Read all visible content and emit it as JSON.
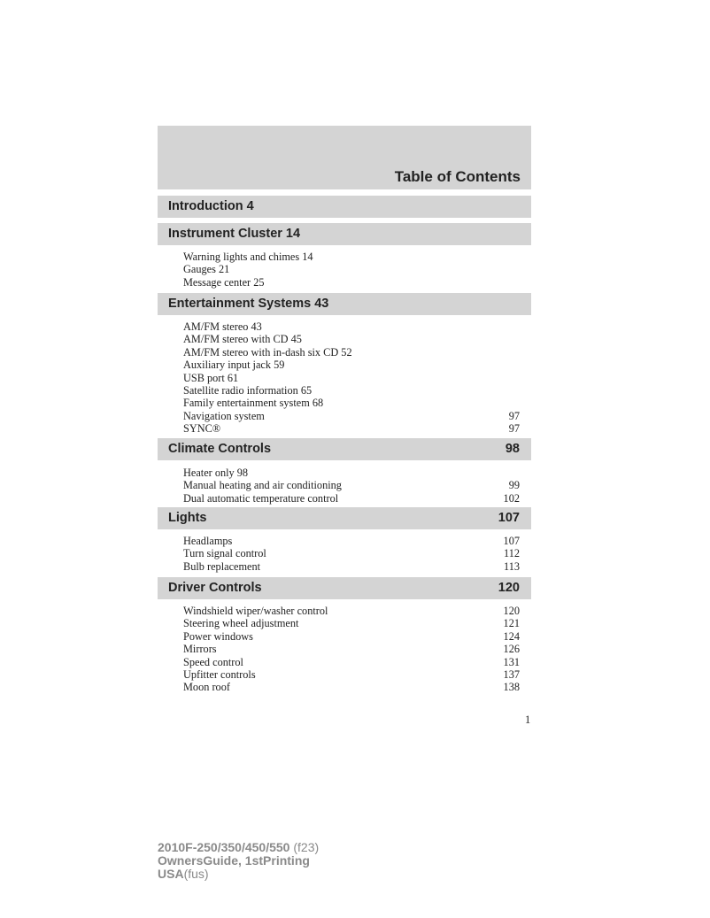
{
  "header": {
    "title": "Table of Contents"
  },
  "sections": [
    {
      "title": "Introduction 4",
      "page": "",
      "items": []
    },
    {
      "title": "Instrument Cluster 14",
      "page": "",
      "items": [
        {
          "label": "Warning lights and chimes 14",
          "page": ""
        },
        {
          "label": "Gauges 21",
          "page": ""
        },
        {
          "label": "Message center 25",
          "page": ""
        }
      ]
    },
    {
      "title": "Entertainment Systems 43",
      "page": "",
      "items": [
        {
          "label": "AM/FM stereo 43",
          "page": ""
        },
        {
          "label": "AM/FM stereo with CD 45",
          "page": ""
        },
        {
          "label": "AM/FM stereo with in-dash six CD 52",
          "page": ""
        },
        {
          "label": "Auxiliary input jack 59",
          "page": ""
        },
        {
          "label": "USB port 61",
          "page": ""
        },
        {
          "label": "Satellite radio information 65",
          "page": ""
        },
        {
          "label": "Family entertainment system 68",
          "page": ""
        },
        {
          "label": "Navigation system",
          "page": "97"
        },
        {
          "label": "SYNC®",
          "page": "97"
        }
      ]
    },
    {
      "title": "Climate Controls",
      "page": "98",
      "items": [
        {
          "label": "Heater only 98",
          "page": ""
        },
        {
          "label": "Manual heating and air conditioning",
          "page": "99"
        },
        {
          "label": "Dual automatic temperature control",
          "page": "102"
        }
      ]
    },
    {
      "title": "Lights",
      "page": "107",
      "items": [
        {
          "label": "Headlamps",
          "page": "107"
        },
        {
          "label": "Turn signal control",
          "page": "112"
        },
        {
          "label": "Bulb replacement",
          "page": "113"
        }
      ]
    },
    {
      "title": "Driver Controls",
      "page": "120",
      "items": [
        {
          "label": "Windshield wiper/washer control",
          "page": "120"
        },
        {
          "label": "Steering wheel adjustment",
          "page": "121"
        },
        {
          "label": "Power windows",
          "page": "124"
        },
        {
          "label": "Mirrors",
          "page": "126"
        },
        {
          "label": "Speed control",
          "page": "131"
        },
        {
          "label": "Upfitter controls",
          "page": "137"
        },
        {
          "label": "Moon roof",
          "page": "138"
        }
      ]
    }
  ],
  "page_number": "1",
  "footer": {
    "line1_bold": "2010F-250/350/450/550",
    "line1_normal": "(f23)",
    "line2": "OwnersGuide, 1stPrinting",
    "line3_bold": "USA",
    "line3_normal": "(fus)"
  }
}
